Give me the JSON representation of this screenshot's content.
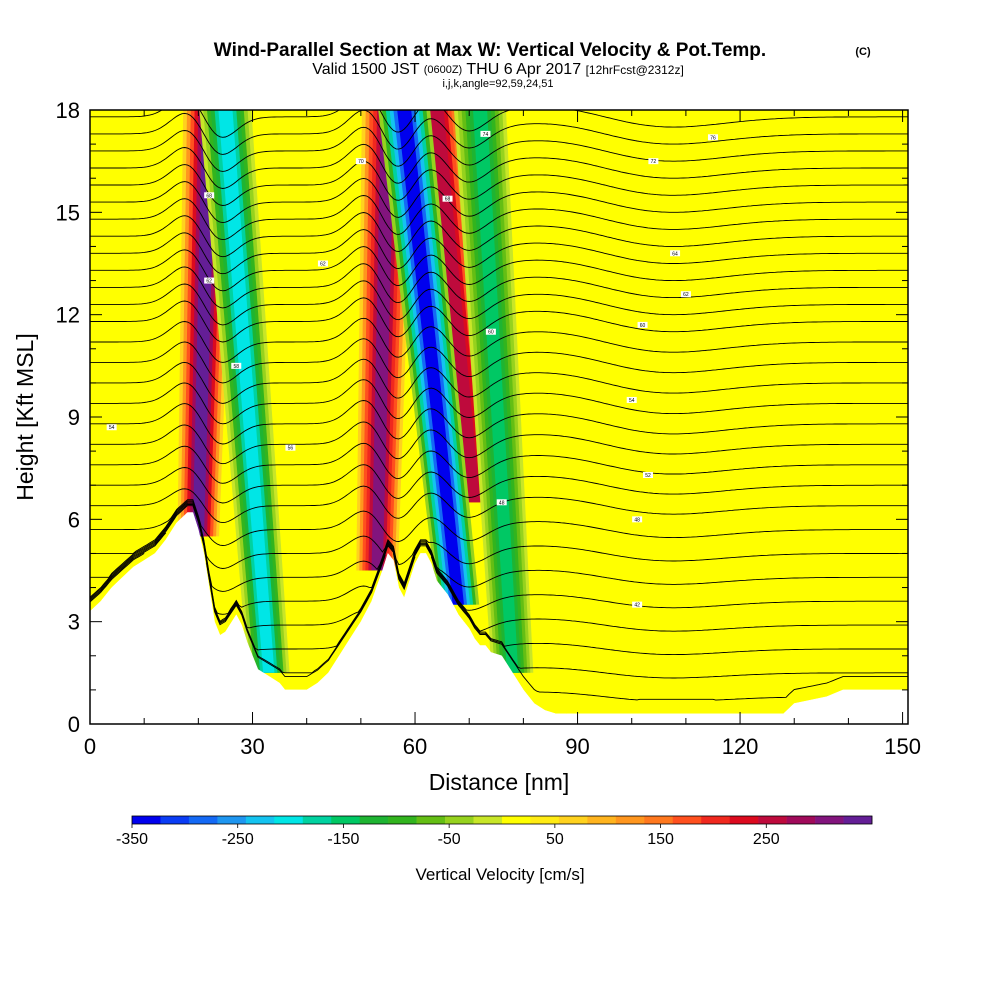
{
  "header": {
    "title": "Wind-Parallel Section at Max W: Vertical Velocity & Pot.Temp.",
    "title_mark": "(C)",
    "valid_prefix": "Valid 1500 JST",
    "valid_zulu": "(0600Z)",
    "valid_date": "THU 6 Apr 2017",
    "forecast": "[12hrFcst@2312z]",
    "grid_info": "i,j,k,angle=92,59,24,51"
  },
  "chart_data": {
    "type": "heatmap",
    "xlabel": "Distance [nm]",
    "ylabel": "Height [Kft MSL]",
    "xlim": [
      0,
      151
    ],
    "ylim": [
      0,
      18
    ],
    "x_ticks": [
      0,
      30,
      60,
      90,
      120,
      150
    ],
    "x_tick_labels": [
      "0",
      "30",
      "60",
      "90",
      "120",
      "150"
    ],
    "y_ticks": [
      0,
      3,
      6,
      9,
      12,
      15,
      18
    ],
    "y_tick_labels": [
      "0",
      "3",
      "6",
      "9",
      "12",
      "15",
      "18"
    ],
    "colorbar": {
      "label": "Vertical Velocity [cm/s]",
      "range": [
        -350,
        350
      ],
      "tick_values": [
        -350,
        -250,
        -150,
        -50,
        50,
        150,
        250
      ],
      "tick_labels": [
        "-350",
        "-250",
        "-150",
        "-50",
        "50",
        "150",
        "250"
      ],
      "colors": [
        "#0000ee",
        "#0a3cf5",
        "#1469f5",
        "#1e96f0",
        "#14c3f0",
        "#00e6e6",
        "#00d2a0",
        "#00c864",
        "#1eb432",
        "#32b41e",
        "#64be14",
        "#96d21e",
        "#c8e628",
        "#ffff00",
        "#ffeb14",
        "#ffd21e",
        "#ffb41e",
        "#ff961e",
        "#ff781e",
        "#ff501e",
        "#f0281e",
        "#dc0a1e",
        "#be0a3c",
        "#a00a5a",
        "#82147d",
        "#641e96"
      ]
    },
    "background_value_cm_s": 25,
    "updraft_bands": [
      {
        "x_top": 22,
        "x_bottom": 20,
        "z_bottom": 5.5,
        "peak_cm_s": 350
      },
      {
        "x_top": 55,
        "x_bottom": 53,
        "z_bottom": 4.5,
        "peak_cm_s": 300
      },
      {
        "x_top": 64,
        "x_bottom": 71,
        "z_bottom": 6.5,
        "peak_cm_s": 260
      }
    ],
    "downdraft_bands": [
      {
        "x_top": 25,
        "x_bottom": 33,
        "z_bottom": 1.5,
        "peak_cm_s": -200
      },
      {
        "x_top": 58,
        "x_bottom": 68,
        "z_bottom": 3.5,
        "peak_cm_s": -350
      },
      {
        "x_top": 72,
        "x_bottom": 78,
        "z_bottom": 1.5,
        "peak_cm_s": -150
      }
    ],
    "terrain": [
      [
        0,
        3.3
      ],
      [
        2,
        3.6
      ],
      [
        4,
        4.0
      ],
      [
        6,
        4.3
      ],
      [
        8,
        4.6
      ],
      [
        10,
        4.8
      ],
      [
        12,
        5.0
      ],
      [
        14,
        5.4
      ],
      [
        16,
        5.9
      ],
      [
        18,
        6.2
      ],
      [
        19,
        6.2
      ],
      [
        20,
        5.7
      ],
      [
        21,
        5.0
      ],
      [
        22,
        4.0
      ],
      [
        23,
        3.0
      ],
      [
        24,
        2.6
      ],
      [
        25,
        2.7
      ],
      [
        27,
        3.2
      ],
      [
        28,
        2.9
      ],
      [
        29,
        2.4
      ],
      [
        30,
        2.0
      ],
      [
        31,
        1.6
      ],
      [
        33,
        1.4
      ],
      [
        35,
        1.2
      ],
      [
        36,
        1.0
      ],
      [
        40,
        1.0
      ],
      [
        42,
        1.2
      ],
      [
        44,
        1.5
      ],
      [
        46,
        2.0
      ],
      [
        48,
        2.5
      ],
      [
        50,
        3.0
      ],
      [
        52,
        3.6
      ],
      [
        54,
        4.5
      ],
      [
        55,
        5.0
      ],
      [
        56,
        4.8
      ],
      [
        57,
        4.0
      ],
      [
        58,
        3.7
      ],
      [
        59,
        4.2
      ],
      [
        60,
        4.7
      ],
      [
        61,
        5.0
      ],
      [
        62,
        5.0
      ],
      [
        63,
        4.7
      ],
      [
        64,
        4.2
      ],
      [
        65,
        4.0
      ],
      [
        66,
        3.8
      ],
      [
        67,
        3.5
      ],
      [
        68,
        3.2
      ],
      [
        69,
        3.0
      ],
      [
        70,
        2.8
      ],
      [
        71,
        2.5
      ],
      [
        72,
        2.3
      ],
      [
        73,
        2.3
      ],
      [
        74,
        2.1
      ],
      [
        76,
        2.0
      ],
      [
        78,
        1.5
      ],
      [
        80,
        1.0
      ],
      [
        82,
        0.6
      ],
      [
        84,
        0.4
      ],
      [
        86,
        0.3
      ],
      [
        88,
        0.3
      ],
      [
        128,
        0.3
      ],
      [
        130,
        0.6
      ],
      [
        133,
        0.7
      ],
      [
        136,
        0.8
      ],
      [
        139,
        1.0
      ],
      [
        151,
        1.0
      ]
    ],
    "theta_contours": {
      "z_levels_kft": [
        0.8,
        1.5,
        2.2,
        2.9,
        3.6,
        4.3,
        5.0,
        5.7,
        6.4,
        7.0,
        7.6,
        8.2,
        8.8,
        9.4,
        10.0,
        10.6,
        11.2,
        11.8,
        12.3,
        12.8,
        13.3,
        13.8,
        14.3,
        14.8,
        15.3,
        15.8,
        16.3,
        16.8,
        17.3,
        17.8
      ],
      "label_samples": [
        {
          "x": 4,
          "z": 8.7,
          "label": "54"
        },
        {
          "x": 22,
          "z": 15.5,
          "label": "68"
        },
        {
          "x": 22,
          "z": 13,
          "label": "62"
        },
        {
          "x": 27,
          "z": 10.5,
          "label": "58"
        },
        {
          "x": 37,
          "z": 8.1,
          "label": "56"
        },
        {
          "x": 43,
          "z": 13.5,
          "label": "62"
        },
        {
          "x": 50,
          "z": 16.5,
          "label": "70"
        },
        {
          "x": 66,
          "z": 15.4,
          "label": "68"
        },
        {
          "x": 73,
          "z": 17.3,
          "label": "74"
        },
        {
          "x": 74,
          "z": 11.5,
          "label": "60"
        },
        {
          "x": 76,
          "z": 6.5,
          "label": "48"
        },
        {
          "x": 100,
          "z": 9.5,
          "label": "54"
        },
        {
          "x": 103,
          "z": 7.3,
          "label": "52"
        },
        {
          "x": 101,
          "z": 6.0,
          "label": "48"
        },
        {
          "x": 101,
          "z": 3.5,
          "label": "42"
        },
        {
          "x": 104,
          "z": 16.5,
          "label": "72"
        },
        {
          "x": 108,
          "z": 13.8,
          "label": "64"
        },
        {
          "x": 115,
          "z": 17.2,
          "label": "76"
        },
        {
          "x": 110,
          "z": 12.6,
          "label": "62"
        },
        {
          "x": 102,
          "z": 11.7,
          "label": "60"
        }
      ]
    }
  }
}
